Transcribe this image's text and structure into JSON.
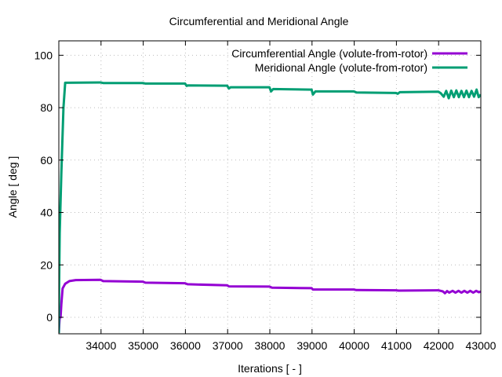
{
  "chart_data": {
    "type": "line",
    "title": "Circumferential and Meridional Angle",
    "xlabel": "Iterations [ - ]",
    "ylabel": "Angle [ deg ]",
    "xlim": [
      33000,
      43000
    ],
    "ylim": [
      -6.3,
      105.5
    ],
    "xticks": [
      34000,
      35000,
      36000,
      37000,
      38000,
      39000,
      40000,
      41000,
      42000,
      43000
    ],
    "yticks": [
      0,
      20,
      40,
      60,
      80,
      100
    ],
    "grid": true,
    "legend_position": "top-right",
    "series": [
      {
        "name": "Circumferential Angle (volute-from-rotor)",
        "color": "#9400d3",
        "points": [
          [
            33000,
            -6
          ],
          [
            33010,
            -3
          ],
          [
            33020,
            0
          ],
          [
            33040,
            0
          ],
          [
            33060,
            5
          ],
          [
            33090,
            11
          ],
          [
            33150,
            12.8
          ],
          [
            33250,
            13.8
          ],
          [
            33400,
            14.2
          ],
          [
            33990,
            14.3
          ],
          [
            34050,
            13.8
          ],
          [
            34990,
            13.6
          ],
          [
            35050,
            13.2
          ],
          [
            35990,
            13.0
          ],
          [
            36050,
            12.6
          ],
          [
            36990,
            12.2
          ],
          [
            37030,
            11.8
          ],
          [
            37990,
            11.7
          ],
          [
            38050,
            11.3
          ],
          [
            38990,
            11.1
          ],
          [
            39020,
            10.6
          ],
          [
            39990,
            10.6
          ],
          [
            40050,
            10.4
          ],
          [
            40990,
            10.3
          ],
          [
            41050,
            10.2
          ],
          [
            41990,
            10.3
          ],
          [
            42100,
            9.9
          ],
          [
            42150,
            9.2
          ],
          [
            42200,
            10.0
          ],
          [
            42250,
            9.4
          ],
          [
            42330,
            10.1
          ],
          [
            42400,
            9.4
          ],
          [
            42470,
            10.1
          ],
          [
            42540,
            9.4
          ],
          [
            42610,
            10.1
          ],
          [
            42680,
            9.4
          ],
          [
            42750,
            10.1
          ],
          [
            42820,
            9.4
          ],
          [
            42890,
            10.1
          ],
          [
            42950,
            9.6
          ],
          [
            43000,
            9.8
          ]
        ]
      },
      {
        "name": "Meridional Angle (volute-from-rotor)",
        "color": "#009e73",
        "points": [
          [
            33000,
            -6
          ],
          [
            33005,
            10
          ],
          [
            33020,
            32
          ],
          [
            33060,
            55
          ],
          [
            33110,
            80
          ],
          [
            33150,
            89.5
          ],
          [
            33990,
            89.6
          ],
          [
            34050,
            89.4
          ],
          [
            34990,
            89.4
          ],
          [
            35050,
            89.2
          ],
          [
            35990,
            89.2
          ],
          [
            36030,
            88.3
          ],
          [
            36060,
            88.5
          ],
          [
            36990,
            88.4
          ],
          [
            37030,
            87.3
          ],
          [
            37070,
            87.8
          ],
          [
            37990,
            87.8
          ],
          [
            38030,
            86.2
          ],
          [
            38080,
            87.1
          ],
          [
            38990,
            86.9
          ],
          [
            39020,
            85.0
          ],
          [
            39080,
            86.2
          ],
          [
            39990,
            86.2
          ],
          [
            40050,
            85.8
          ],
          [
            40990,
            85.6
          ],
          [
            41030,
            85.3
          ],
          [
            41080,
            85.9
          ],
          [
            41990,
            86.1
          ],
          [
            42050,
            85.5
          ],
          [
            42120,
            84.2
          ],
          [
            42180,
            86.4
          ],
          [
            42240,
            83.6
          ],
          [
            42300,
            86.5
          ],
          [
            42360,
            84.0
          ],
          [
            42420,
            86.6
          ],
          [
            42480,
            84.0
          ],
          [
            42540,
            86.4
          ],
          [
            42600,
            84.0
          ],
          [
            42660,
            86.5
          ],
          [
            42720,
            84.0
          ],
          [
            42780,
            86.4
          ],
          [
            42840,
            84.2
          ],
          [
            42900,
            86.9
          ],
          [
            42950,
            84.0
          ],
          [
            43000,
            85.0
          ]
        ]
      }
    ]
  }
}
